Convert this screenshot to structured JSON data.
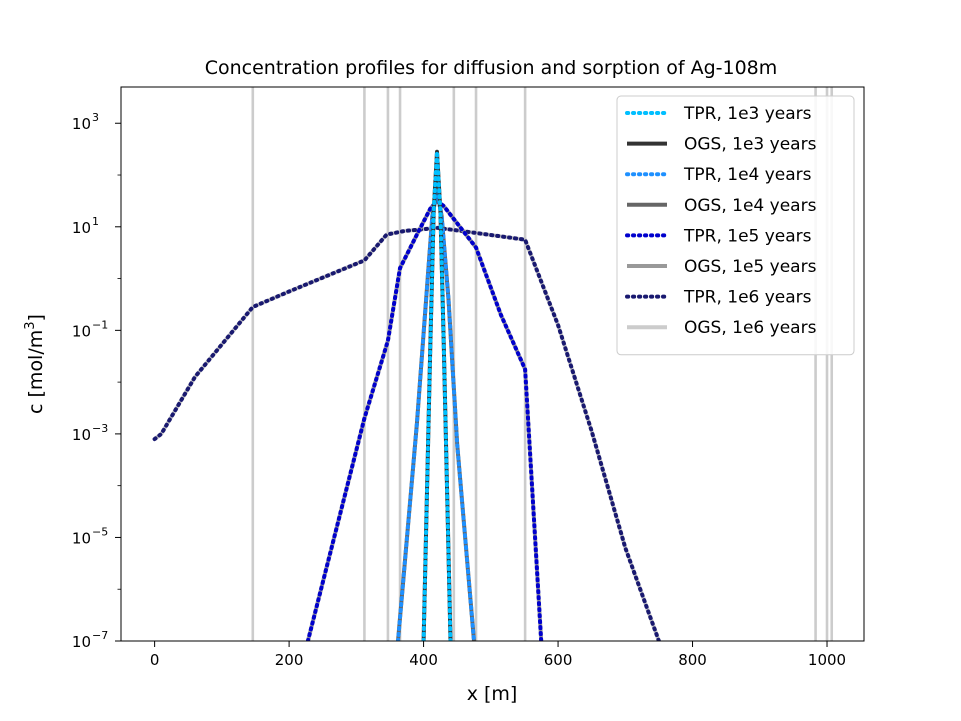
{
  "chart_data": {
    "type": "line",
    "title": "Concentration profiles for diffusion and sorption of Ag-108m",
    "xlabel": "x [m]",
    "ylabel_main": "c [mol/m",
    "ylabel_sup": "3",
    "ylabel_end": "]",
    "xscale": "linear",
    "yscale": "log",
    "xlim": [
      -50,
      1055
    ],
    "ylim_log10": [
      -7,
      3.7
    ],
    "x_ticks": [
      0,
      200,
      400,
      600,
      800,
      1000
    ],
    "y_ticks": [
      {
        "exp": -7,
        "base": "10",
        "sup": "−7"
      },
      {
        "exp": -5,
        "base": "10",
        "sup": "−5"
      },
      {
        "exp": -3,
        "base": "10",
        "sup": "−3"
      },
      {
        "exp": -1,
        "base": "10",
        "sup": "−1"
      },
      {
        "exp": 1,
        "base": "10",
        "sup": "1"
      },
      {
        "exp": 3,
        "base": "10",
        "sup": "3"
      }
    ],
    "vertical_lines_x": [
      146,
      312,
      347,
      365,
      445,
      478,
      551,
      983,
      1000,
      1007
    ],
    "vertical_line_color": "#cccccc",
    "legend_position": "upper right",
    "series": [
      {
        "name": "OGS, 1e6 years",
        "color": "#cccccc",
        "style": "solid",
        "x": [
          0,
          10,
          60,
          146,
          200,
          312,
          345,
          372,
          390,
          420,
          450,
          551,
          600,
          650,
          700,
          750
        ],
        "log10c": [
          -3.1,
          -3.0,
          -1.9,
          -0.55,
          -0.25,
          0.35,
          0.85,
          0.92,
          0.94,
          0.98,
          0.93,
          0.75,
          -0.9,
          -2.95,
          -5.2,
          -7.0
        ]
      },
      {
        "name": "TPR, 1e6 years",
        "color": "#191970",
        "style": "dotted",
        "x": [
          0,
          10,
          60,
          146,
          200,
          312,
          345,
          372,
          390,
          420,
          450,
          551,
          600,
          650,
          700,
          750
        ],
        "log10c": [
          -3.1,
          -3.0,
          -1.9,
          -0.55,
          -0.25,
          0.35,
          0.85,
          0.92,
          0.94,
          0.98,
          0.93,
          0.75,
          -0.9,
          -2.95,
          -5.2,
          -7.0
        ]
      },
      {
        "name": "OGS, 1e5 years",
        "color": "#999999",
        "style": "solid",
        "x": [
          228,
          312,
          347,
          365,
          390,
          410,
          420,
          430,
          445,
          478,
          515,
          551,
          575
        ],
        "log10c": [
          -7.0,
          -2.7,
          -1.2,
          0.2,
          0.85,
          1.35,
          1.5,
          1.4,
          1.15,
          0.6,
          -0.7,
          -1.75,
          -7.0
        ]
      },
      {
        "name": "TPR, 1e5 years",
        "color": "#0000cd",
        "style": "dotted",
        "x": [
          228,
          312,
          347,
          365,
          390,
          410,
          420,
          430,
          445,
          478,
          515,
          551,
          575
        ],
        "log10c": [
          -7.0,
          -2.7,
          -1.2,
          0.2,
          0.85,
          1.35,
          1.5,
          1.4,
          1.15,
          0.6,
          -0.7,
          -1.75,
          -7.0
        ]
      },
      {
        "name": "OGS, 1e4 years",
        "color": "#666666",
        "style": "solid",
        "x": [
          362,
          390,
          405,
          413,
          420,
          427,
          437,
          450,
          475
        ],
        "log10c": [
          -7.0,
          -2.8,
          -0.2,
          1.2,
          1.7,
          1.2,
          -0.4,
          -3.2,
          -7.0
        ]
      },
      {
        "name": "TPR, 1e4 years",
        "color": "#1e90ff",
        "style": "dotted",
        "x": [
          362,
          390,
          405,
          413,
          420,
          427,
          437,
          450,
          475
        ],
        "log10c": [
          -7.0,
          -2.8,
          -0.2,
          1.2,
          1.7,
          1.2,
          -0.4,
          -3.2,
          -7.0
        ]
      },
      {
        "name": "OGS, 1e3 years",
        "color": "#333333",
        "style": "solid",
        "x": [
          400,
          410,
          415,
          420,
          425,
          430,
          440
        ],
        "log10c": [
          -7.0,
          -1.3,
          1.3,
          2.45,
          1.3,
          -1.3,
          -7.0
        ]
      },
      {
        "name": "TPR, 1e3 years",
        "color": "#00bfff",
        "style": "dotted",
        "x": [
          400,
          410,
          415,
          420,
          425,
          430,
          440
        ],
        "log10c": [
          -7.0,
          -1.3,
          1.3,
          2.45,
          1.3,
          -1.3,
          -7.0
        ]
      }
    ],
    "legend": [
      {
        "label": "TPR, 1e3 years",
        "color": "#00bfff",
        "style": "dotted"
      },
      {
        "label": "OGS, 1e3 years",
        "color": "#333333",
        "style": "solid"
      },
      {
        "label": "TPR, 1e4 years",
        "color": "#1e90ff",
        "style": "dotted"
      },
      {
        "label": "OGS, 1e4 years",
        "color": "#666666",
        "style": "solid"
      },
      {
        "label": "TPR, 1e5 years",
        "color": "#0000cd",
        "style": "dotted"
      },
      {
        "label": "OGS, 1e5 years",
        "color": "#999999",
        "style": "solid"
      },
      {
        "label": "TPR, 1e6 years",
        "color": "#191970",
        "style": "dotted"
      },
      {
        "label": "OGS, 1e6 years",
        "color": "#cccccc",
        "style": "solid"
      }
    ]
  }
}
